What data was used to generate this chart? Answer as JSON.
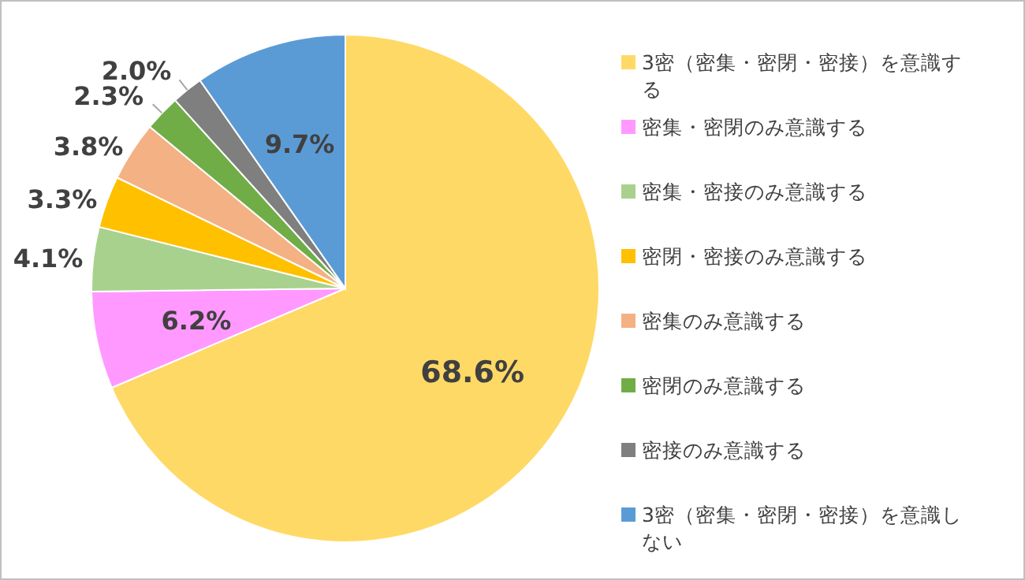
{
  "chart_data": {
    "type": "pie",
    "categories": [
      "3密（密集・密閉・密接）を意識する",
      "密集・密閉のみ意識する",
      "密集・密接のみ意識する",
      "密閉・密接のみ意識する",
      "密集のみ意識する",
      "密閉のみ意識する",
      "密接のみ意識する",
      "3密（密集・密閉・密接）を意識しない"
    ],
    "values": [
      68.6,
      6.2,
      4.1,
      3.3,
      3.8,
      2.3,
      2.0,
      9.7
    ],
    "colors": [
      "#ffd966",
      "#ff99ff",
      "#a9d18e",
      "#ffc000",
      "#f4b183",
      "#70ad47",
      "#7f7f7f",
      "#5b9bd5"
    ],
    "value_labels": [
      "68.6%",
      "6.2%",
      "4.1%",
      "3.3%",
      "3.8%",
      "2.3%",
      "2.0%",
      "9.7%"
    ],
    "legend": "right"
  }
}
